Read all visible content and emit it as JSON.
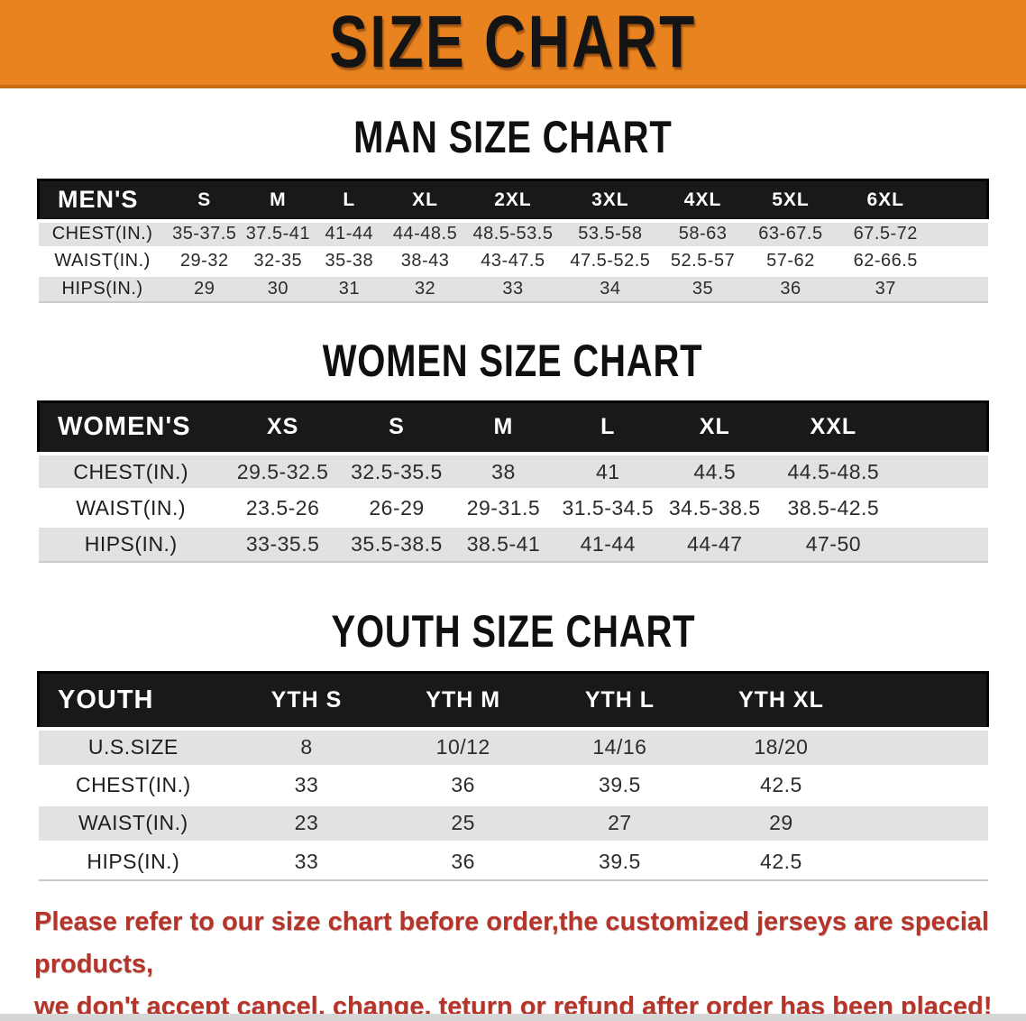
{
  "banner": {
    "title": "SIZE CHART",
    "bg_color": "#e8831f"
  },
  "sections": [
    {
      "heading": "MAN SIZE CHART",
      "table": {
        "label": "MEN'S",
        "columns": [
          "S",
          "M",
          "L",
          "XL",
          "2XL",
          "3XL",
          "4XL",
          "5XL",
          "6XL"
        ],
        "rows": [
          {
            "label": "CHEST(IN.)",
            "values": [
              "35-37.5",
              "37.5-41",
              "41-44",
              "44-48.5",
              "48.5-53.5",
              "53.5-58",
              "58-63",
              "63-67.5",
              "67.5-72"
            ]
          },
          {
            "label": "WAIST(IN.)",
            "values": [
              "29-32",
              "32-35",
              "35-38",
              "38-43",
              "43-47.5",
              "47.5-52.5",
              "52.5-57",
              "57-62",
              "62-66.5"
            ]
          },
          {
            "label": "HIPS(IN.)",
            "values": [
              "29",
              "30",
              "31",
              "32",
              "33",
              "34",
              "35",
              "36",
              "37"
            ]
          }
        ]
      }
    },
    {
      "heading": "WOMEN SIZE CHART",
      "table": {
        "label": "WOMEN'S",
        "columns": [
          "XS",
          "S",
          "M",
          "L",
          "XL",
          "XXL"
        ],
        "rows": [
          {
            "label": "CHEST(IN.)",
            "values": [
              "29.5-32.5",
              "32.5-35.5",
              "38",
              "41",
              "44.5",
              "44.5-48.5"
            ]
          },
          {
            "label": "WAIST(IN.)",
            "values": [
              "23.5-26",
              "26-29",
              "29-31.5",
              "31.5-34.5",
              "34.5-38.5",
              "38.5-42.5"
            ]
          },
          {
            "label": "HIPS(IN.)",
            "values": [
              "33-35.5",
              "35.5-38.5",
              "38.5-41",
              "41-44",
              "44-47",
              "47-50"
            ]
          }
        ]
      }
    },
    {
      "heading": "YOUTH SIZE CHART",
      "table": {
        "label": "YOUTH",
        "columns": [
          "YTH S",
          "YTH M",
          "YTH L",
          "YTH XL"
        ],
        "rows": [
          {
            "label": "U.S.SIZE",
            "values": [
              "8",
              "10/12",
              "14/16",
              "18/20"
            ]
          },
          {
            "label": "CHEST(IN.)",
            "values": [
              "33",
              "36",
              "39.5",
              "42.5"
            ]
          },
          {
            "label": "WAIST(IN.)",
            "values": [
              "23",
              "25",
              "27",
              "29"
            ]
          },
          {
            "label": "HIPS(IN.)",
            "values": [
              "33",
              "36",
              "39.5",
              "42.5"
            ]
          }
        ]
      }
    }
  ],
  "disclaimer": {
    "line1": "Please refer to our size chart before order,the customized jerseys are special products,",
    "line2": "we don't accept cancel, change, teturn or refund after order has been placed!",
    "color": "#b5352b"
  }
}
